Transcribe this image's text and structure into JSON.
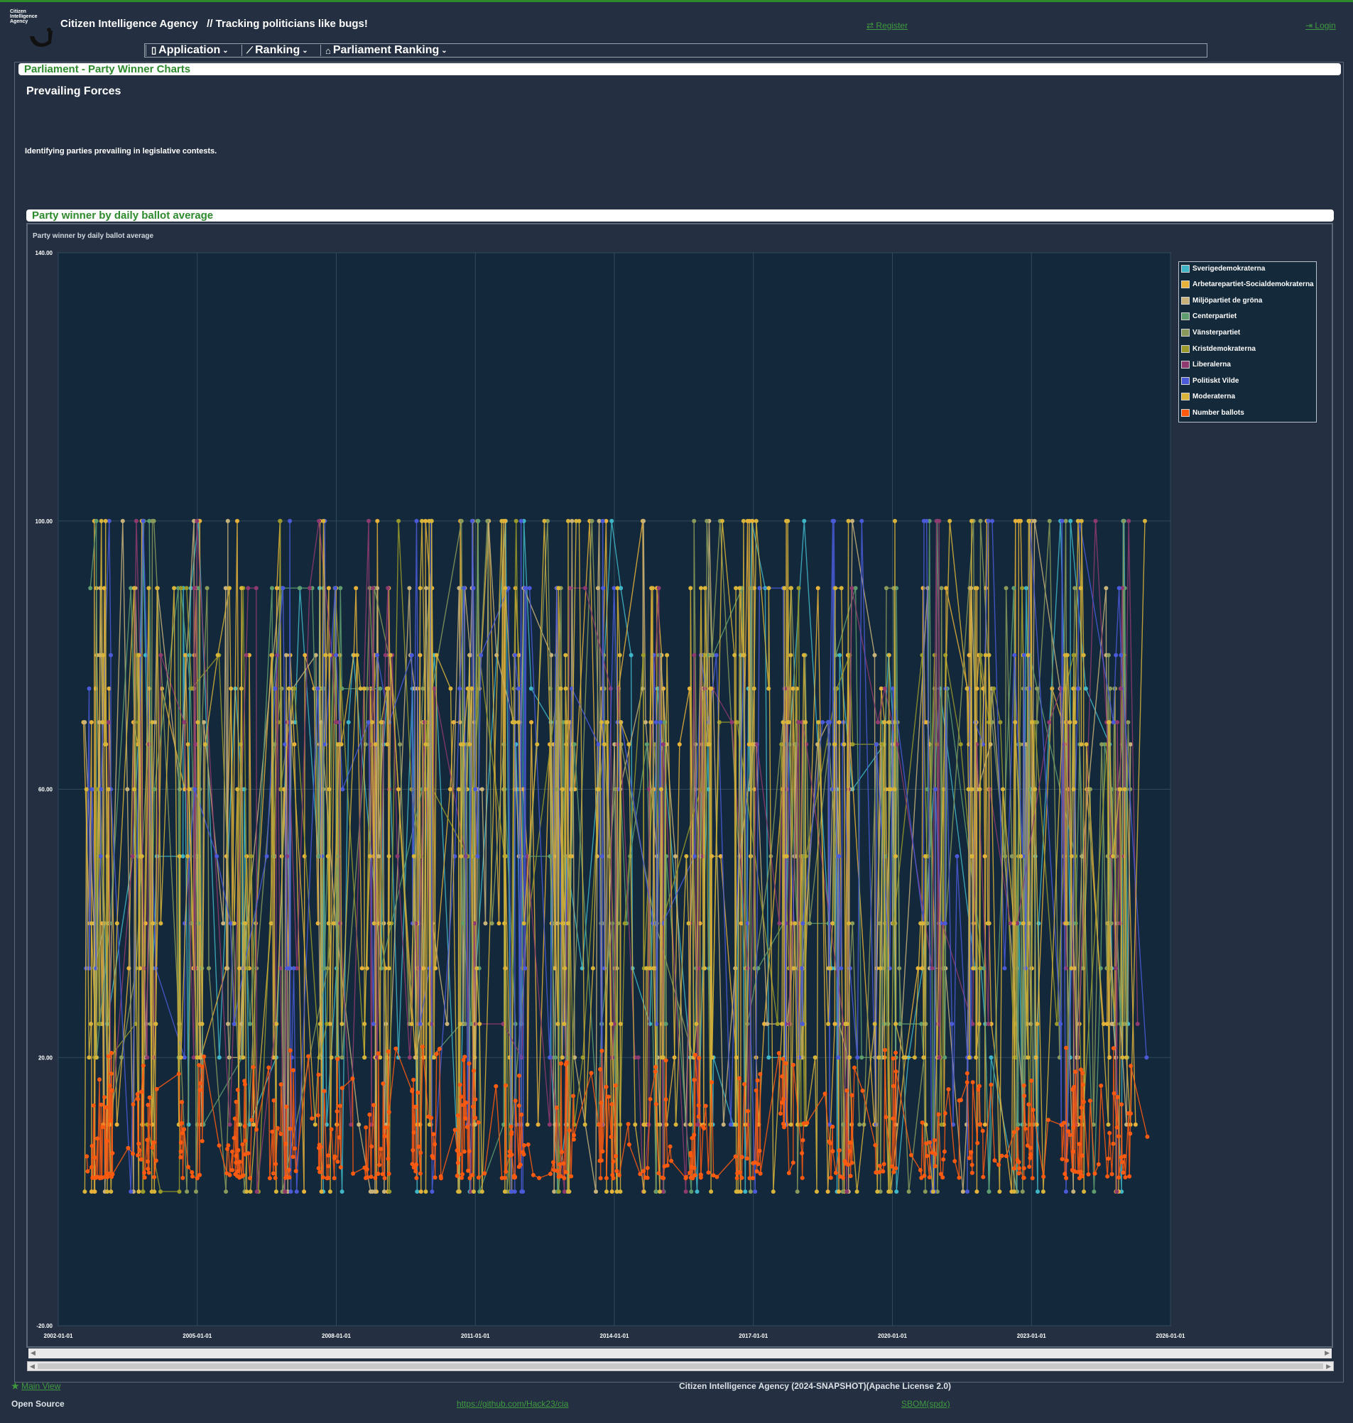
{
  "header": {
    "logo_text": "Citizen Intelligence Agency",
    "brand": "Citizen Intelligence Agency",
    "tagline": "// Tracking politicians like bugs!",
    "register": "Register",
    "login": "Login"
  },
  "nav": {
    "items": [
      {
        "label": "Application",
        "icon": "document-icon"
      },
      {
        "label": "Ranking",
        "icon": "line-chart-icon"
      },
      {
        "label": "Parliament Ranking",
        "icon": "bank-icon"
      }
    ]
  },
  "page": {
    "title": "Parliament - Party Winner Charts",
    "heading": "Prevailing Forces",
    "description": "Identifying parties prevailing in legislative contests.",
    "section_title": "Party winner by daily ballot average"
  },
  "chart_data": {
    "type": "line",
    "title": "Party winner by daily ballot average",
    "y_ticks": [
      "140.00",
      "100.00",
      "60.00",
      "20.00",
      "-20.00"
    ],
    "ylim": [
      -20,
      140
    ],
    "x_ticks": [
      "2002-01-01",
      "2005-01-01",
      "2008-01-01",
      "2011-01-01",
      "2014-01-01",
      "2017-01-01",
      "2020-01-01",
      "2023-01-01",
      "2026-01-01"
    ],
    "xlim": [
      "2002-01-01",
      "2026-01-01"
    ],
    "grid": true,
    "legend_position": "top-right",
    "series": [
      {
        "name": "Sverigedemokraterna",
        "color": "#3fb6c8"
      },
      {
        "name": "Arbetarepartiet-Socialdemokraterna",
        "color": "#e8b23a"
      },
      {
        "name": "Miljöpartiet de gröna",
        "color": "#c9b27a"
      },
      {
        "name": "Centerpartiet",
        "color": "#5f9c6e"
      },
      {
        "name": "Vänsterpartiet",
        "color": "#8a9a5b"
      },
      {
        "name": "Kristdemokraterna",
        "color": "#9a9a2a"
      },
      {
        "name": "Liberalerna",
        "color": "#8e3a6e"
      },
      {
        "name": "Politiskt Vilde",
        "color": "#4a5ad8"
      },
      {
        "name": "Moderaterna",
        "color": "#d8b43a"
      },
      {
        "name": "Number ballots",
        "color": "#ff5a10"
      }
    ],
    "value_levels": [
      100,
      90,
      80,
      75,
      70,
      66.7,
      60,
      50,
      40,
      33.3,
      25,
      20,
      10,
      0
    ],
    "ballot_range": [
      0,
      22
    ],
    "active_years": [
      2002.5,
      2025.5
    ]
  },
  "footer": {
    "main_view": "Main View",
    "license": "Citizen Intelligence Agency (2024-SNAPSHOT)(Apache License 2.0)",
    "open_source": "Open Source",
    "github": "https://github.com/Hack23/cia",
    "sbom": "SBOM(spdx)"
  }
}
